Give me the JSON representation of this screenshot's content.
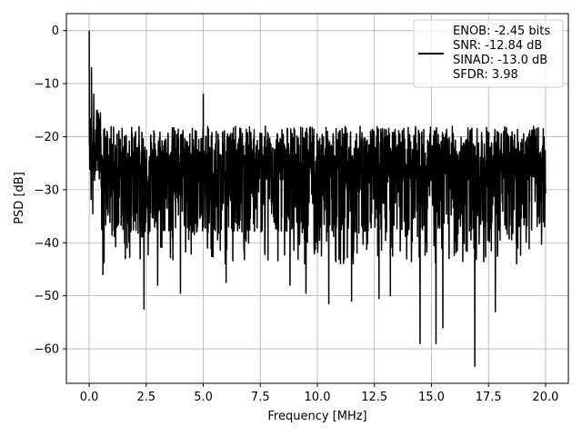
{
  "chart_data": {
    "type": "line",
    "title": "",
    "xlabel": "Frequency [MHz]",
    "ylabel": "PSD [dB]",
    "xlim": [
      -1.0,
      21.0
    ],
    "ylim": [
      -66.5,
      3.2
    ],
    "xticks": [
      0.0,
      2.5,
      5.0,
      7.5,
      10.0,
      12.5,
      15.0,
      17.5,
      20.0
    ],
    "xtick_labels": [
      "0.0",
      "2.5",
      "5.0",
      "7.5",
      "10.0",
      "12.5",
      "15.0",
      "17.5",
      "20.0"
    ],
    "yticks": [
      0,
      -10,
      -20,
      -30,
      -40,
      -50,
      -60
    ],
    "ytick_labels": [
      "0",
      "−10",
      "−20",
      "−30",
      "−40",
      "−50",
      "−60"
    ],
    "grid": true,
    "legend_placement": "top-right",
    "series": [
      {
        "name": "ENOB: -2.45 bits\nSNR: -12.84 dB\nSINAD: -13.0 dB\nSFDR: 3.98",
        "legend_lines": [
          "ENOB: -2.45 bits",
          "SNR: -12.84 dB",
          "SINAD: -13.0 dB",
          "SFDR: 3.98"
        ],
        "color": "#000000",
        "x_range": [
          0.0,
          20.0
        ],
        "noise_floor_db": -29,
        "noise_upper_db": -18,
        "notable_points": [
          {
            "x": 0.0,
            "y": 0.0
          },
          {
            "x": 0.1,
            "y": -7.0
          },
          {
            "x": 0.2,
            "y": -12.0
          },
          {
            "x": 0.35,
            "y": -15.0
          },
          {
            "x": 5.0,
            "y": -12.0
          },
          {
            "x": 2.4,
            "y": -52.5
          },
          {
            "x": 0.6,
            "y": -46.0
          },
          {
            "x": 14.5,
            "y": -59.0
          },
          {
            "x": 15.2,
            "y": -59.0
          },
          {
            "x": 15.5,
            "y": -56.0
          },
          {
            "x": 16.9,
            "y": -63.3
          },
          {
            "x": 17.8,
            "y": -53.0
          },
          {
            "x": 3.0,
            "y": -48.0
          },
          {
            "x": 4.0,
            "y": -49.5
          },
          {
            "x": 9.5,
            "y": -49.5
          },
          {
            "x": 10.5,
            "y": -51.5
          },
          {
            "x": 11.5,
            "y": -51.0
          },
          {
            "x": 13.2,
            "y": -50.0
          },
          {
            "x": 12.7,
            "y": -50.5
          },
          {
            "x": 8.8,
            "y": -48.0
          },
          {
            "x": 6.0,
            "y": -47.5
          }
        ]
      }
    ]
  }
}
